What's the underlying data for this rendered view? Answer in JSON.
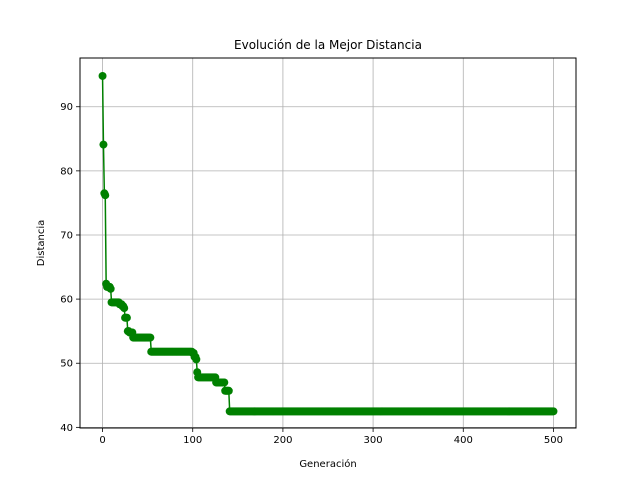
{
  "chart_data": {
    "type": "line",
    "title": "Evolución de la Mejor Distancia",
    "xlabel": "Generación",
    "ylabel": "Distancia",
    "xlim": [
      -25,
      525
    ],
    "ylim": [
      39.9,
      97.6
    ],
    "xticks": [
      0,
      100,
      200,
      300,
      400,
      500
    ],
    "yticks": [
      40,
      50,
      60,
      70,
      80,
      90
    ],
    "grid": true,
    "line_color": "#008000",
    "marker": "circle",
    "series": [
      {
        "steps": [
          [
            0,
            94.8
          ],
          [
            1,
            84.1
          ],
          [
            2,
            76.5
          ],
          [
            3,
            76.2
          ],
          [
            4,
            62.4
          ],
          [
            5,
            61.9
          ],
          [
            9,
            61.6
          ],
          [
            10,
            59.5
          ],
          [
            19,
            59.2
          ],
          [
            22,
            58.9
          ],
          [
            24,
            58.6
          ],
          [
            25,
            57.1
          ],
          [
            28,
            55.0
          ],
          [
            30,
            54.8
          ],
          [
            34,
            54.0
          ],
          [
            54,
            51.8
          ],
          [
            100,
            51.6
          ],
          [
            102,
            51.0
          ],
          [
            104,
            50.6
          ],
          [
            105,
            48.6
          ],
          [
            106,
            47.8
          ],
          [
            126,
            47.0
          ],
          [
            136,
            45.7
          ],
          [
            141,
            42.5
          ]
        ],
        "x_end": 500
      }
    ]
  }
}
